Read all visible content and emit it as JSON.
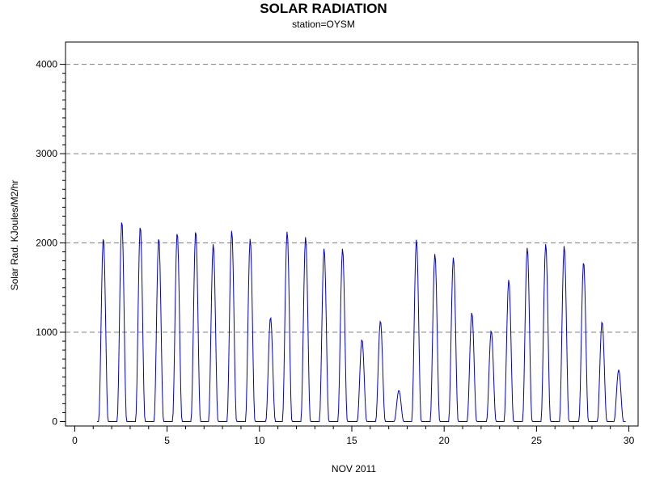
{
  "chart_data": {
    "type": "line",
    "title": "SOLAR RADIATION",
    "subtitle": "station=OYSM",
    "xlabel": "NOV 2011",
    "ylabel": "Solar Rad. KJoules/M2/hr",
    "xlim": [
      -0.5,
      30.5
    ],
    "ylim": [
      -50,
      4250
    ],
    "x_ticks": [
      0,
      5,
      10,
      15,
      20,
      25,
      30
    ],
    "y_ticks": [
      0,
      1000,
      2000,
      3000,
      4000
    ],
    "y_gridlines": [
      1000,
      2000,
      3000,
      4000
    ],
    "grid": true,
    "line_color": "#0000cc",
    "series": [
      {
        "daily_peaks": [
          [
            1.55,
            2060
          ],
          [
            2.55,
            2250
          ],
          [
            3.55,
            2190
          ],
          [
            4.55,
            2060
          ],
          [
            5.55,
            2120
          ],
          [
            6.55,
            2140
          ],
          [
            7.5,
            1990
          ],
          [
            8.5,
            2140
          ],
          [
            9.5,
            2050
          ],
          [
            10.6,
            1170
          ],
          [
            11.5,
            2130
          ],
          [
            12.5,
            2070
          ],
          [
            13.5,
            1940
          ],
          [
            14.5,
            1940
          ],
          [
            15.55,
            920
          ],
          [
            16.55,
            1130
          ],
          [
            17.55,
            350
          ],
          [
            18.5,
            2040
          ],
          [
            19.5,
            1880
          ],
          [
            20.5,
            1840
          ],
          [
            21.5,
            1220
          ],
          [
            22.55,
            1020
          ],
          [
            23.5,
            1590
          ],
          [
            24.5,
            1950
          ],
          [
            25.5,
            1990
          ],
          [
            26.5,
            1970
          ],
          [
            27.55,
            1790
          ],
          [
            28.55,
            1120
          ],
          [
            29.45,
            580
          ]
        ]
      }
    ]
  }
}
